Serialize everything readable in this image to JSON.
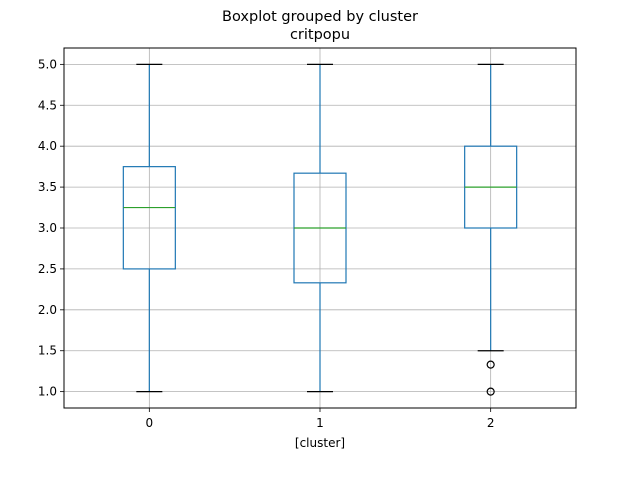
{
  "chart_data": {
    "type": "boxplot",
    "title": "Boxplot grouped by cluster",
    "subtitle": "critpopu",
    "xlabel": "[cluster]",
    "ylabel": "",
    "ylim": [
      0.8,
      5.2
    ],
    "yticks": [
      "1.0",
      "1.5",
      "2.0",
      "2.5",
      "3.0",
      "3.5",
      "4.0",
      "4.5",
      "5.0"
    ],
    "grid": true,
    "categories": [
      "0",
      "1",
      "2"
    ],
    "boxes": [
      {
        "category": "0",
        "whisker_low": 1.0,
        "q1": 2.5,
        "median": 3.25,
        "q3": 3.75,
        "whisker_high": 5.0,
        "fliers": []
      },
      {
        "category": "1",
        "whisker_low": 1.0,
        "q1": 2.33,
        "median": 3.0,
        "q3": 3.67,
        "whisker_high": 5.0,
        "fliers": []
      },
      {
        "category": "2",
        "whisker_low": 1.5,
        "q1": 3.0,
        "median": 3.5,
        "q3": 4.0,
        "whisker_high": 5.0,
        "fliers": [
          1.33,
          1.0
        ]
      }
    ]
  },
  "colors": {
    "box": "#1f77b4",
    "median": "#2ca02c",
    "whisker": "#1f77b4",
    "cap": "#000000",
    "flier": "#000000",
    "grid": "#b0b0b0"
  }
}
